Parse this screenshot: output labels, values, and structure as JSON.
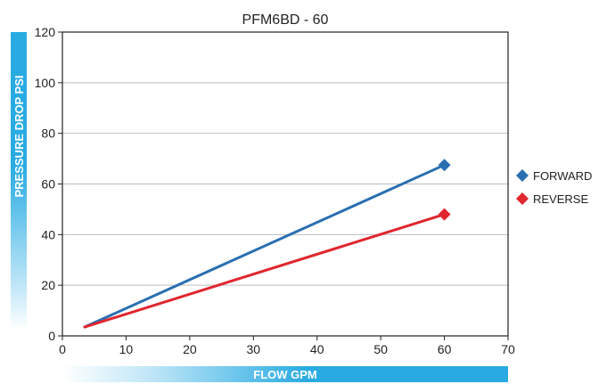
{
  "chart_data": {
    "type": "line",
    "title": "PFM6BD - 60",
    "xlabel": "FLOW GPM",
    "ylabel": "PRESSURE DROP PSI",
    "xlim": [
      0,
      70
    ],
    "ylim": [
      0,
      120
    ],
    "x_ticks": [
      "0",
      "10",
      "20",
      "30",
      "40",
      "50",
      "60",
      "70"
    ],
    "y_ticks": [
      "0",
      "20",
      "40",
      "60",
      "80",
      "100",
      "120"
    ],
    "grid": "horizontal",
    "legend_position": "right",
    "series": [
      {
        "name": "FORWARD",
        "color": "#2a6fb0",
        "x": [
          3.5,
          60
        ],
        "y": [
          3.5,
          67.5
        ]
      },
      {
        "name": "REVERSE",
        "color": "#e0262e",
        "x": [
          3.5,
          60
        ],
        "y": [
          3.5,
          48
        ]
      }
    ],
    "colors": {
      "axis_title_band": "#29abe2",
      "grid": "#bdbdbd"
    }
  }
}
